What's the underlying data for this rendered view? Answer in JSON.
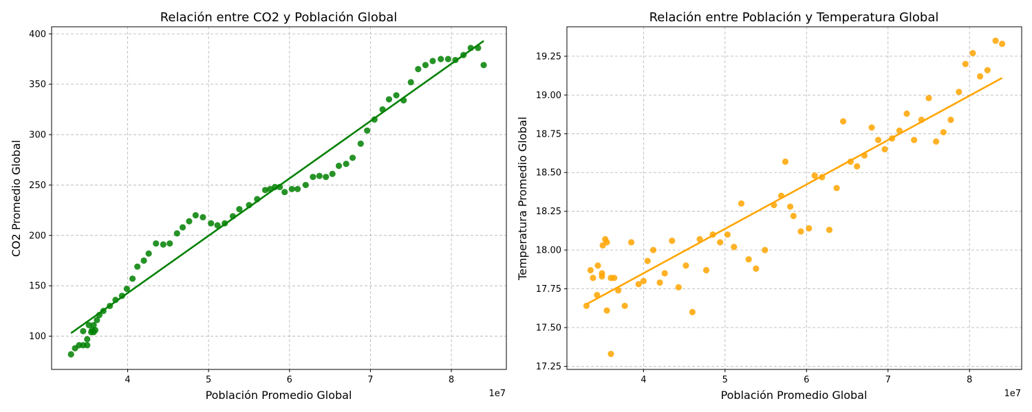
{
  "chart_data": [
    {
      "type": "scatter",
      "title": "Relación entre CO2 y Población Global",
      "xlabel": "Población Promedio Global",
      "ylabel": "CO2 Promedio Global",
      "x_offset_label": "1e7",
      "xlim": [
        3.06,
        8.68
      ],
      "ylim": [
        67,
        407
      ],
      "xticks": [
        4,
        5,
        6,
        7,
        8
      ],
      "yticks": [
        100,
        150,
        200,
        250,
        300,
        350,
        400
      ],
      "grid": true,
      "color": "#008000",
      "trendline": {
        "x": [
          3.3,
          8.4
        ],
        "y": [
          103,
          393
        ]
      },
      "points": [
        [
          3.3,
          82
        ],
        [
          3.35,
          88
        ],
        [
          3.4,
          91
        ],
        [
          3.45,
          91
        ],
        [
          3.45,
          105
        ],
        [
          3.5,
          91
        ],
        [
          3.5,
          97
        ],
        [
          3.52,
          111
        ],
        [
          3.55,
          104
        ],
        [
          3.56,
          106
        ],
        [
          3.58,
          104
        ],
        [
          3.6,
          106
        ],
        [
          3.58,
          111
        ],
        [
          3.62,
          116
        ],
        [
          3.65,
          121
        ],
        [
          3.7,
          125
        ],
        [
          3.78,
          130
        ],
        [
          3.85,
          136
        ],
        [
          3.93,
          140
        ],
        [
          3.99,
          147
        ],
        [
          4.06,
          157
        ],
        [
          4.12,
          169
        ],
        [
          4.2,
          175
        ],
        [
          4.26,
          182
        ],
        [
          4.35,
          192
        ],
        [
          4.44,
          191
        ],
        [
          4.52,
          192
        ],
        [
          4.61,
          202
        ],
        [
          4.68,
          208
        ],
        [
          4.76,
          214
        ],
        [
          4.84,
          220
        ],
        [
          4.93,
          218
        ],
        [
          5.03,
          212
        ],
        [
          5.11,
          210
        ],
        [
          5.2,
          212
        ],
        [
          5.3,
          219
        ],
        [
          5.38,
          226
        ],
        [
          5.5,
          230
        ],
        [
          5.6,
          236
        ],
        [
          5.7,
          245
        ],
        [
          5.76,
          246
        ],
        [
          5.82,
          248
        ],
        [
          5.88,
          248
        ],
        [
          5.94,
          243
        ],
        [
          6.03,
          246
        ],
        [
          6.1,
          246
        ],
        [
          6.2,
          250
        ],
        [
          6.29,
          258
        ],
        [
          6.37,
          259
        ],
        [
          6.45,
          258
        ],
        [
          6.53,
          261
        ],
        [
          6.61,
          269
        ],
        [
          6.7,
          271
        ],
        [
          6.78,
          277
        ],
        [
          6.88,
          291
        ],
        [
          6.96,
          304
        ],
        [
          7.05,
          315
        ],
        [
          7.15,
          325
        ],
        [
          7.23,
          335
        ],
        [
          7.32,
          339
        ],
        [
          7.41,
          334
        ],
        [
          7.5,
          352
        ],
        [
          7.59,
          365
        ],
        [
          7.68,
          369
        ],
        [
          7.77,
          373
        ],
        [
          7.87,
          375
        ],
        [
          7.96,
          375
        ],
        [
          8.05,
          374
        ],
        [
          8.15,
          379
        ],
        [
          8.24,
          386
        ],
        [
          8.33,
          386
        ],
        [
          8.4,
          369
        ]
      ]
    },
    {
      "type": "scatter",
      "title": "Relación entre Población y Temperatura Global",
      "xlabel": "Población Promedio Global",
      "ylabel": "Temperatura Promedio Global",
      "x_offset_label": "1e7",
      "xlim": [
        3.06,
        8.64
      ],
      "ylim": [
        17.23,
        19.44
      ],
      "xticks": [
        4,
        5,
        6,
        7,
        8
      ],
      "yticks": [
        17.25,
        17.5,
        17.75,
        18.0,
        18.25,
        18.5,
        18.75,
        19.0,
        19.25
      ],
      "ytick_labels": [
        "17.25",
        "17.50",
        "17.75",
        "18.00",
        "18.25",
        "18.50",
        "18.75",
        "19.00",
        "19.25"
      ],
      "grid": true,
      "color": "#FFA500",
      "trendline": {
        "x": [
          3.3,
          8.4
        ],
        "y": [
          17.65,
          19.11
        ]
      },
      "points": [
        [
          3.3,
          17.64
        ],
        [
          3.35,
          17.87
        ],
        [
          3.38,
          17.82
        ],
        [
          3.43,
          17.71
        ],
        [
          3.44,
          17.9
        ],
        [
          3.49,
          17.85
        ],
        [
          3.49,
          17.83
        ],
        [
          3.5,
          18.03
        ],
        [
          3.53,
          18.07
        ],
        [
          3.55,
          17.61
        ],
        [
          3.55,
          18.05
        ],
        [
          3.6,
          17.33
        ],
        [
          3.6,
          17.82
        ],
        [
          3.64,
          17.82
        ],
        [
          3.69,
          17.74
        ],
        [
          3.77,
          17.64
        ],
        [
          3.85,
          18.05
        ],
        [
          3.94,
          17.78
        ],
        [
          4.0,
          17.8
        ],
        [
          4.05,
          17.93
        ],
        [
          4.12,
          18.0
        ],
        [
          4.2,
          17.79
        ],
        [
          4.26,
          17.85
        ],
        [
          4.35,
          18.06
        ],
        [
          4.43,
          17.76
        ],
        [
          4.52,
          17.9
        ],
        [
          4.6,
          17.6
        ],
        [
          4.69,
          18.07
        ],
        [
          4.77,
          17.87
        ],
        [
          4.85,
          18.1
        ],
        [
          4.94,
          18.05
        ],
        [
          5.03,
          18.1
        ],
        [
          5.11,
          18.02
        ],
        [
          5.2,
          18.3
        ],
        [
          5.29,
          17.94
        ],
        [
          5.38,
          17.88
        ],
        [
          5.49,
          18.0
        ],
        [
          5.6,
          18.29
        ],
        [
          5.69,
          18.35
        ],
        [
          5.74,
          18.57
        ],
        [
          5.8,
          18.28
        ],
        [
          5.84,
          18.22
        ],
        [
          5.93,
          18.12
        ],
        [
          6.03,
          18.14
        ],
        [
          6.1,
          18.48
        ],
        [
          6.19,
          18.47
        ],
        [
          6.28,
          18.13
        ],
        [
          6.37,
          18.4
        ],
        [
          6.45,
          18.83
        ],
        [
          6.54,
          18.57
        ],
        [
          6.62,
          18.54
        ],
        [
          6.71,
          18.61
        ],
        [
          6.8,
          18.79
        ],
        [
          6.88,
          18.71
        ],
        [
          6.96,
          18.65
        ],
        [
          7.05,
          18.72
        ],
        [
          7.14,
          18.77
        ],
        [
          7.23,
          18.88
        ],
        [
          7.32,
          18.71
        ],
        [
          7.41,
          18.84
        ],
        [
          7.5,
          18.98
        ],
        [
          7.59,
          18.7
        ],
        [
          7.68,
          18.76
        ],
        [
          7.77,
          18.84
        ],
        [
          7.87,
          19.02
        ],
        [
          7.95,
          19.2
        ],
        [
          8.04,
          19.27
        ],
        [
          8.13,
          19.12
        ],
        [
          8.22,
          19.16
        ],
        [
          8.32,
          19.35
        ],
        [
          8.4,
          19.33
        ]
      ]
    }
  ]
}
